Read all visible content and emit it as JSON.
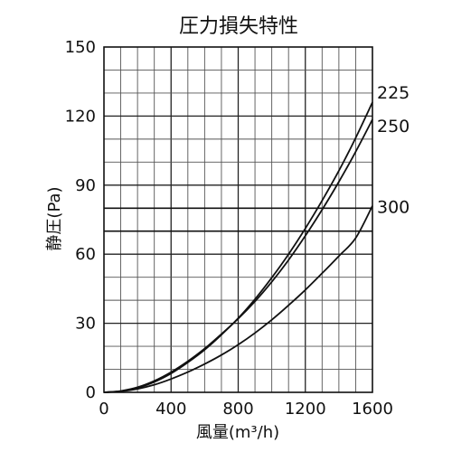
{
  "chart_data": {
    "type": "line",
    "title": "圧力損失特性",
    "xlabel": "風量(m³/h)",
    "ylabel": "静圧(Pa)",
    "xlim": [
      0,
      1600
    ],
    "ylim": [
      0,
      150
    ],
    "x_ticks": [
      "0",
      "400",
      "800",
      "1200",
      "1600"
    ],
    "y_ticks": [
      "0",
      "30",
      "60",
      "90",
      "120",
      "150"
    ],
    "grid": true,
    "x_minor_step": 100,
    "y_minor_step": 10,
    "reference_lines_y": [
      70,
      80
    ],
    "series": [
      {
        "name": "225",
        "x": [
          0,
          100,
          200,
          300,
          400,
          500,
          600,
          700,
          800,
          900,
          1000,
          1100,
          1200,
          1300,
          1400,
          1500,
          1600
        ],
        "y": [
          0,
          0.5,
          2,
          4.5,
          8.2,
          13,
          18.5,
          25,
          32.2,
          40.5,
          49.8,
          60,
          71.2,
          83.3,
          96.3,
          110.5,
          126
        ]
      },
      {
        "name": "250",
        "x": [
          0,
          100,
          200,
          300,
          400,
          500,
          600,
          700,
          800,
          900,
          1000,
          1100,
          1200,
          1300,
          1400,
          1500,
          1600
        ],
        "y": [
          0,
          0.6,
          2.2,
          5,
          8.8,
          13.5,
          19,
          25.3,
          32,
          39.5,
          48,
          57.5,
          68,
          79.3,
          91.5,
          104.5,
          118.5
        ]
      },
      {
        "name": "300",
        "x": [
          0,
          100,
          200,
          300,
          400,
          500,
          600,
          700,
          800,
          900,
          1000,
          1100,
          1200,
          1300,
          1400,
          1500,
          1600
        ],
        "y": [
          0,
          0.4,
          1.5,
          3.3,
          5.8,
          8.8,
          12.3,
          16.2,
          20.7,
          25.8,
          31.5,
          37.8,
          44.5,
          51.7,
          59.2,
          67,
          81
        ]
      }
    ]
  }
}
